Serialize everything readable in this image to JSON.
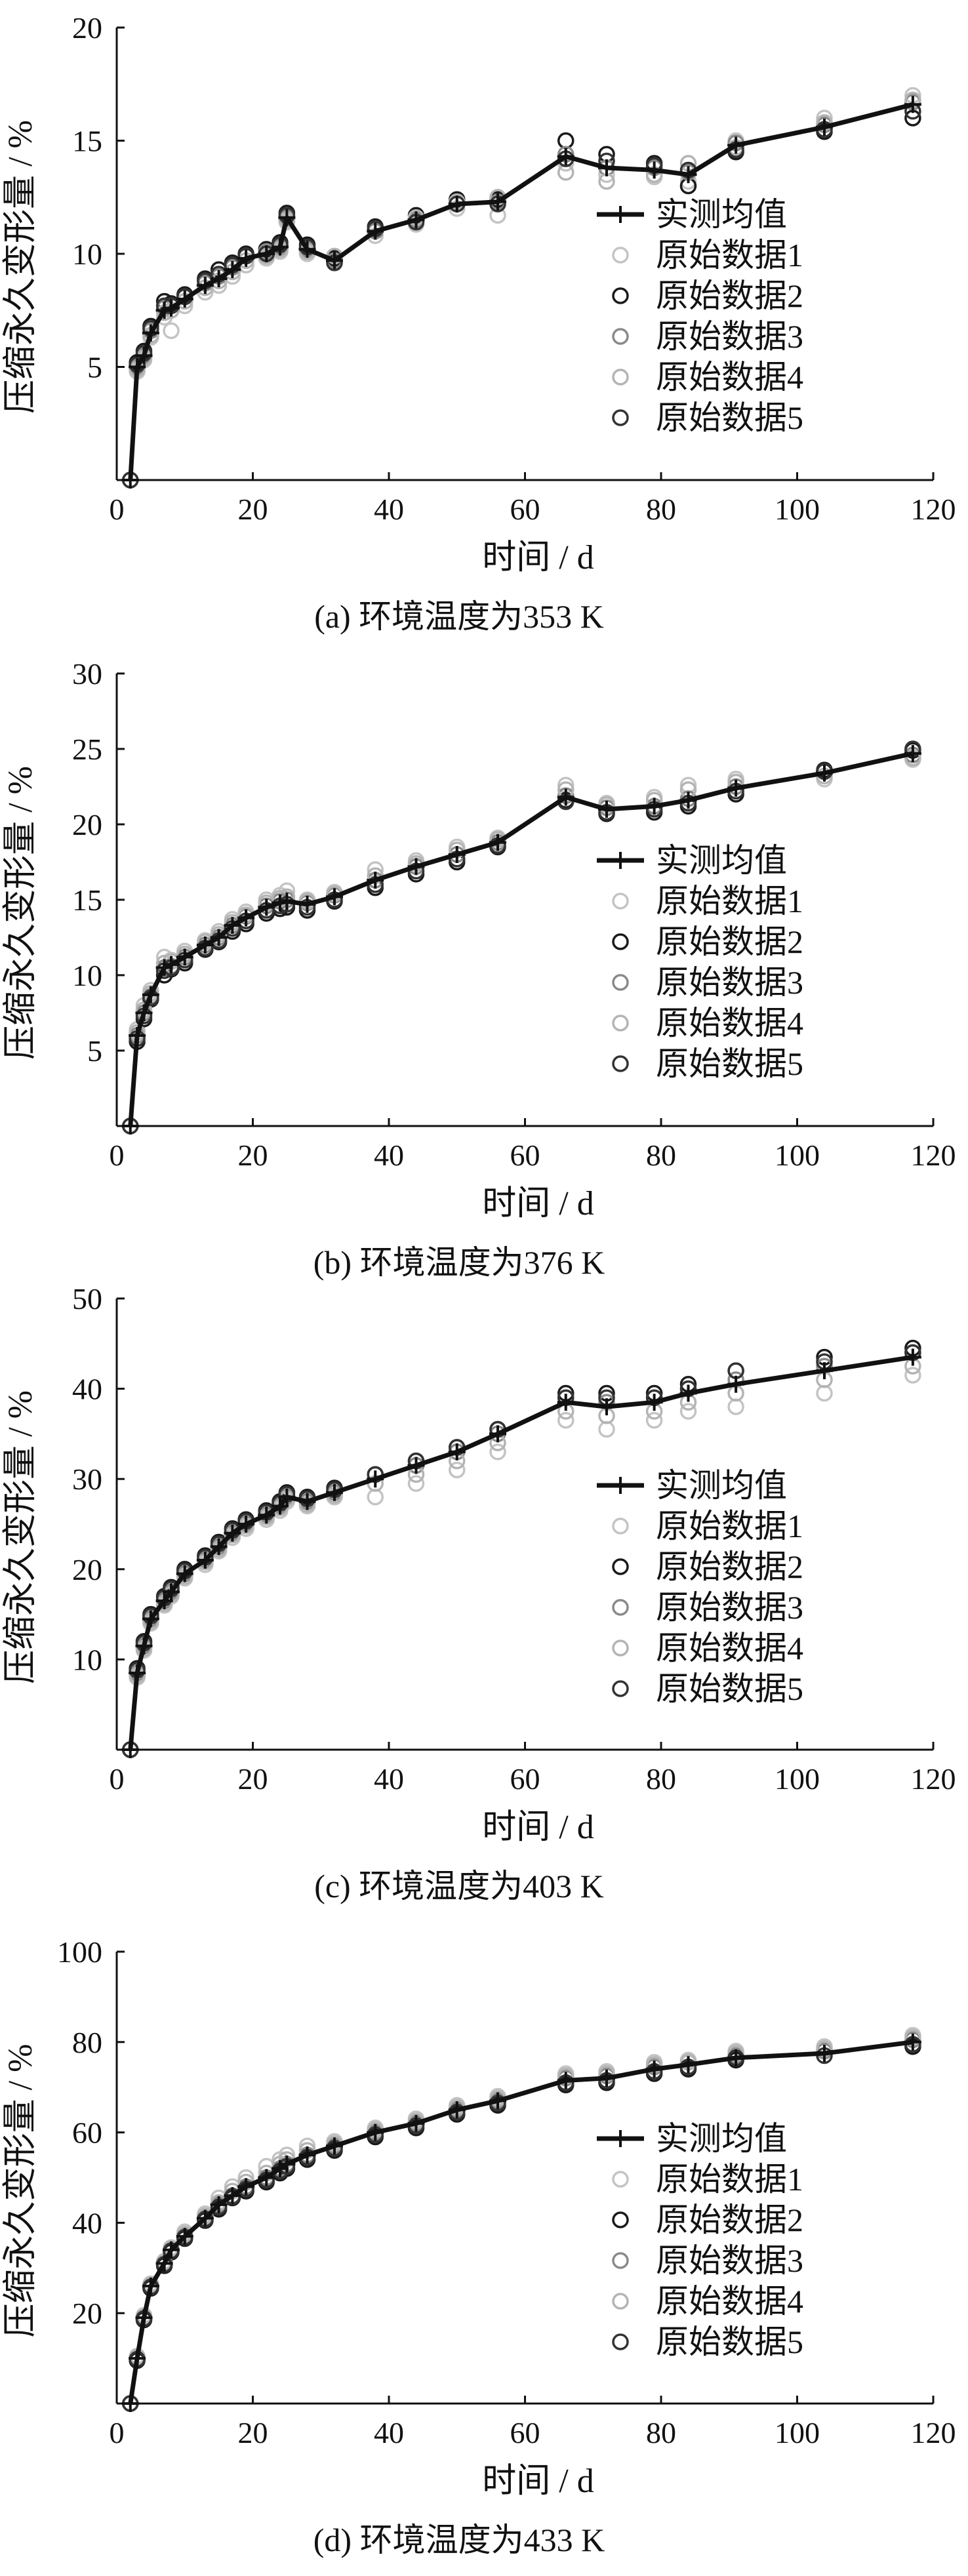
{
  "chart_data": [
    {
      "type": "line",
      "caption": "(a)  环境温度为353 K",
      "xlabel": "时间 / d",
      "ylabel": "压缩永久变形量 / %",
      "xlim": [
        0,
        120
      ],
      "ylim": [
        0,
        20
      ],
      "xticks": [
        0,
        20,
        40,
        60,
        80,
        100,
        120
      ],
      "yticks": [
        5,
        10,
        15,
        20
      ],
      "grid": false,
      "legend_position": "right",
      "x": [
        2,
        3,
        4,
        5,
        7,
        8,
        10,
        13,
        15,
        17,
        19,
        22,
        24,
        25,
        28,
        32,
        38,
        44,
        50,
        56,
        66,
        72,
        79,
        84,
        91,
        104,
        117
      ],
      "series": [
        {
          "name": "实测均值",
          "style": "mean",
          "color": "#111111",
          "values": [
            0,
            5.0,
            5.5,
            6.5,
            7.5,
            7.6,
            8.0,
            8.6,
            8.9,
            9.3,
            9.8,
            10.0,
            10.3,
            11.6,
            10.2,
            9.7,
            11.0,
            11.5,
            12.2,
            12.3,
            14.3,
            13.8,
            13.7,
            13.5,
            14.8,
            15.6,
            16.6
          ]
        },
        {
          "name": "原始数据1",
          "color": "#c4c4c4",
          "values": [
            0,
            4.8,
            5.3,
            6.3,
            7.2,
            6.6,
            7.7,
            8.3,
            8.6,
            9.0,
            9.5,
            9.8,
            10.1,
            11.4,
            10.0,
            9.6,
            10.8,
            11.3,
            12.0,
            11.7,
            14.0,
            13.5,
            13.4,
            13.2,
            15.0,
            16.0,
            17.0
          ]
        },
        {
          "name": "原始数据2",
          "color": "#1a1a1a",
          "values": [
            0,
            5.2,
            5.7,
            6.8,
            7.9,
            7.8,
            8.2,
            8.9,
            9.3,
            9.6,
            10.0,
            10.2,
            10.5,
            11.8,
            10.4,
            9.8,
            11.2,
            11.7,
            12.4,
            12.4,
            15.0,
            14.4,
            14.0,
            13.0,
            14.5,
            15.4,
            16.0
          ]
        },
        {
          "name": "原始数据3",
          "color": "#8a8a8a",
          "values": [
            0,
            5.0,
            5.5,
            6.6,
            7.6,
            7.7,
            8.1,
            8.7,
            9.0,
            9.4,
            9.9,
            10.1,
            10.3,
            11.6,
            10.2,
            9.7,
            11.0,
            11.5,
            12.2,
            12.3,
            14.4,
            13.8,
            13.8,
            13.6,
            14.9,
            15.7,
            16.7
          ]
        },
        {
          "name": "原始数据4",
          "color": "#b4b4b4",
          "values": [
            0,
            4.9,
            5.4,
            6.4,
            7.4,
            7.5,
            7.9,
            8.5,
            8.8,
            9.2,
            9.7,
            9.9,
            10.2,
            11.5,
            10.1,
            9.9,
            11.1,
            11.6,
            12.3,
            12.5,
            13.6,
            13.2,
            13.5,
            14.0,
            14.7,
            15.8,
            16.8
          ]
        },
        {
          "name": "原始数据5",
          "color": "#333333",
          "values": [
            0,
            5.1,
            5.6,
            6.7,
            7.7,
            7.7,
            8.1,
            8.8,
            9.1,
            9.5,
            9.9,
            10.0,
            10.4,
            11.7,
            10.3,
            9.6,
            11.1,
            11.4,
            12.2,
            12.2,
            14.2,
            14.1,
            13.9,
            13.7,
            14.6,
            15.5,
            16.3
          ]
        }
      ]
    },
    {
      "type": "line",
      "caption": "(b)  环境温度为376 K",
      "xlabel": "时间 / d",
      "ylabel": "压缩永久变形量 / %",
      "xlim": [
        0,
        120
      ],
      "ylim": [
        0,
        30
      ],
      "xticks": [
        0,
        20,
        40,
        60,
        80,
        100,
        120
      ],
      "yticks": [
        5,
        10,
        15,
        20,
        25,
        30
      ],
      "grid": false,
      "legend_position": "right",
      "x": [
        2,
        3,
        4,
        5,
        7,
        8,
        10,
        13,
        15,
        17,
        19,
        22,
        24,
        25,
        28,
        32,
        38,
        44,
        50,
        56,
        66,
        72,
        79,
        84,
        91,
        104,
        117
      ],
      "series": [
        {
          "name": "实测均值",
          "style": "mean",
          "color": "#111111",
          "values": [
            0,
            6.0,
            7.5,
            8.7,
            10.5,
            10.7,
            11.2,
            12.0,
            12.5,
            13.3,
            13.8,
            14.5,
            14.8,
            14.9,
            14.7,
            15.2,
            16.3,
            17.2,
            18.0,
            18.8,
            21.8,
            21.0,
            21.2,
            21.6,
            22.4,
            23.4,
            24.7
          ]
        },
        {
          "name": "原始数据1",
          "color": "#c4c4c4",
          "values": [
            0,
            6.4,
            8.0,
            9.0,
            11.2,
            11.0,
            11.6,
            12.3,
            12.9,
            13.7,
            14.2,
            15.0,
            15.3,
            15.6,
            15.0,
            15.5,
            17.0,
            17.6,
            18.5,
            19.1,
            22.6,
            21.4,
            21.8,
            22.6,
            23.0,
            23.0,
            24.3
          ]
        },
        {
          "name": "原始数据2",
          "color": "#1a1a1a",
          "values": [
            0,
            5.6,
            7.1,
            8.4,
            10.0,
            10.4,
            10.8,
            11.7,
            12.2,
            12.9,
            13.4,
            14.1,
            14.4,
            14.5,
            14.3,
            14.9,
            15.8,
            16.7,
            17.5,
            18.5,
            21.6,
            20.7,
            20.8,
            21.2,
            22.0,
            23.6,
            24.9
          ]
        },
        {
          "name": "原始数据3",
          "color": "#8a8a8a",
          "values": [
            0,
            6.0,
            7.5,
            8.6,
            10.5,
            10.6,
            11.2,
            12.0,
            12.5,
            13.3,
            13.9,
            14.6,
            14.9,
            15.0,
            14.8,
            15.3,
            16.3,
            17.2,
            18.0,
            18.8,
            21.9,
            21.1,
            21.2,
            21.7,
            22.5,
            23.5,
            24.6
          ]
        },
        {
          "name": "原始数据4",
          "color": "#b4b4b4",
          "values": [
            0,
            6.2,
            7.7,
            8.8,
            10.8,
            10.9,
            11.4,
            12.2,
            12.7,
            13.5,
            14.0,
            14.8,
            15.1,
            15.2,
            14.9,
            15.4,
            16.6,
            17.4,
            18.3,
            19.0,
            22.3,
            21.3,
            21.6,
            22.3,
            22.8,
            23.2,
            24.4
          ]
        },
        {
          "name": "原始数据5",
          "color": "#333333",
          "values": [
            0,
            5.8,
            7.3,
            8.5,
            10.3,
            10.5,
            11.0,
            11.8,
            12.3,
            13.1,
            13.6,
            14.3,
            14.6,
            14.7,
            14.5,
            15.0,
            16.0,
            16.9,
            17.7,
            18.6,
            21.5,
            20.8,
            21.0,
            21.4,
            22.2,
            23.5,
            25.0
          ]
        }
      ]
    },
    {
      "type": "line",
      "caption": "(c)  环境温度为403 K",
      "xlabel": "时间 / d",
      "ylabel": "压缩永久变形量 / %",
      "xlim": [
        0,
        120
      ],
      "ylim": [
        0,
        50
      ],
      "xticks": [
        0,
        20,
        40,
        60,
        80,
        100,
        120
      ],
      "yticks": [
        10,
        20,
        30,
        40,
        50
      ],
      "grid": false,
      "legend_position": "right",
      "x": [
        2,
        3,
        4,
        5,
        7,
        8,
        10,
        13,
        15,
        17,
        19,
        22,
        24,
        25,
        28,
        32,
        38,
        44,
        50,
        56,
        66,
        72,
        79,
        84,
        91,
        104,
        117
      ],
      "series": [
        {
          "name": "实测均值",
          "style": "mean",
          "color": "#111111",
          "values": [
            0,
            8.5,
            11.5,
            14.5,
            16.5,
            17.5,
            19.5,
            21.0,
            22.5,
            24.0,
            25.0,
            26.0,
            27.0,
            28.0,
            27.5,
            28.5,
            30.0,
            31.5,
            33.0,
            35.0,
            38.5,
            38.0,
            38.5,
            39.5,
            40.5,
            42.0,
            43.5
          ]
        },
        {
          "name": "原始数据1",
          "color": "#c4c4c4",
          "values": [
            0,
            8.0,
            11.0,
            14.0,
            16.0,
            17.0,
            19.0,
            20.5,
            22.0,
            23.5,
            24.5,
            25.5,
            26.5,
            27.5,
            27.0,
            28.0,
            28.0,
            29.5,
            31.0,
            33.0,
            36.5,
            35.5,
            36.5,
            37.5,
            38.0,
            39.5,
            41.5
          ]
        },
        {
          "name": "原始数据2",
          "color": "#1a1a1a",
          "values": [
            0,
            9.0,
            12.0,
            15.0,
            17.0,
            18.0,
            20.0,
            21.5,
            23.0,
            24.5,
            25.5,
            26.5,
            27.5,
            28.5,
            28.0,
            29.0,
            30.5,
            32.0,
            33.5,
            35.5,
            39.5,
            39.5,
            39.5,
            40.5,
            42.0,
            43.5,
            44.5
          ]
        },
        {
          "name": "原始数据3",
          "color": "#8a8a8a",
          "values": [
            0,
            8.5,
            11.5,
            14.5,
            16.5,
            17.5,
            19.5,
            21.0,
            22.5,
            24.0,
            25.0,
            26.0,
            27.0,
            28.0,
            27.5,
            28.5,
            30.5,
            31.5,
            33.0,
            35.0,
            39.0,
            38.5,
            39.0,
            40.0,
            41.0,
            42.5,
            44.0
          ]
        },
        {
          "name": "原始数据4",
          "color": "#b4b4b4",
          "values": [
            0,
            8.2,
            11.2,
            14.2,
            16.2,
            17.2,
            19.2,
            20.8,
            22.2,
            23.8,
            24.8,
            25.8,
            26.8,
            27.8,
            27.2,
            28.2,
            29.5,
            30.5,
            32.0,
            34.0,
            37.5,
            37.0,
            37.5,
            38.5,
            39.5,
            41.0,
            42.5
          ]
        },
        {
          "name": "原始数据5",
          "color": "#333333",
          "values": [
            0,
            8.8,
            11.8,
            14.8,
            16.8,
            17.8,
            19.8,
            21.3,
            22.8,
            24.3,
            25.3,
            26.3,
            27.3,
            28.3,
            27.8,
            28.8,
            30.5,
            32.0,
            33.5,
            35.5,
            39.0,
            39.0,
            39.0,
            40.0,
            42.0,
            43.0,
            44.0
          ]
        }
      ]
    },
    {
      "type": "line",
      "caption": "(d)  环境温度为433 K",
      "xlabel": "时间 / d",
      "ylabel": "压缩永久变形量 / %",
      "xlim": [
        0,
        120
      ],
      "ylim": [
        0,
        100
      ],
      "xticks": [
        0,
        20,
        40,
        60,
        80,
        100,
        120
      ],
      "yticks": [
        20,
        40,
        60,
        80,
        100
      ],
      "grid": false,
      "legend_position": "right",
      "x": [
        2,
        3,
        4,
        5,
        7,
        8,
        10,
        13,
        15,
        17,
        19,
        22,
        24,
        25,
        28,
        32,
        38,
        44,
        50,
        56,
        66,
        72,
        79,
        84,
        91,
        104,
        117
      ],
      "series": [
        {
          "name": "实测均值",
          "style": "mean",
          "color": "#111111",
          "values": [
            0,
            10.0,
            19.0,
            26.0,
            31.0,
            34.0,
            37.0,
            41.0,
            44.0,
            46.0,
            48.0,
            50.0,
            52.0,
            53.0,
            55.0,
            57.0,
            60.0,
            62.0,
            65.0,
            67.0,
            71.5,
            72.0,
            74.0,
            75.0,
            76.5,
            77.5,
            80.0
          ]
        },
        {
          "name": "原始数据1",
          "color": "#c4c4c4",
          "values": [
            0,
            10.5,
            19.5,
            26.5,
            31.5,
            34.5,
            38.0,
            42.0,
            45.5,
            48.0,
            50.0,
            52.5,
            54.0,
            55.0,
            57.0,
            58.0,
            61.0,
            63.0,
            66.0,
            68.0,
            73.0,
            73.5,
            75.5,
            76.0,
            78.0,
            79.0,
            81.5
          ]
        },
        {
          "name": "原始数据2",
          "color": "#1a1a1a",
          "values": [
            0,
            9.5,
            18.5,
            25.5,
            30.5,
            33.5,
            36.5,
            40.5,
            43.0,
            45.5,
            47.0,
            49.0,
            51.0,
            52.0,
            54.0,
            56.0,
            59.0,
            61.0,
            64.0,
            66.0,
            70.5,
            71.0,
            73.0,
            74.0,
            76.0,
            78.0,
            79.0
          ]
        },
        {
          "name": "原始数据3",
          "color": "#8a8a8a",
          "values": [
            0,
            10.0,
            19.0,
            26.0,
            31.0,
            34.0,
            37.0,
            41.0,
            44.0,
            46.0,
            48.0,
            50.0,
            52.0,
            53.0,
            55.0,
            57.0,
            60.0,
            62.0,
            65.0,
            67.0,
            72.0,
            72.5,
            74.5,
            75.5,
            77.0,
            78.0,
            80.5
          ]
        },
        {
          "name": "原始数据4",
          "color": "#b4b4b4",
          "values": [
            0,
            10.2,
            19.2,
            26.2,
            31.2,
            34.2,
            37.5,
            41.5,
            44.5,
            47.0,
            49.0,
            51.0,
            53.0,
            54.0,
            56.0,
            57.5,
            60.5,
            62.5,
            65.5,
            67.5,
            72.5,
            73.0,
            75.0,
            75.5,
            77.5,
            78.5,
            81.0
          ]
        },
        {
          "name": "原始数据5",
          "color": "#333333",
          "values": [
            0,
            9.8,
            18.8,
            25.8,
            30.8,
            33.8,
            36.8,
            40.8,
            43.5,
            45.8,
            47.5,
            49.5,
            51.5,
            52.5,
            54.5,
            56.5,
            59.5,
            61.5,
            64.5,
            66.5,
            71.0,
            71.5,
            73.5,
            74.5,
            76.5,
            77.0,
            79.5
          ]
        }
      ]
    }
  ]
}
